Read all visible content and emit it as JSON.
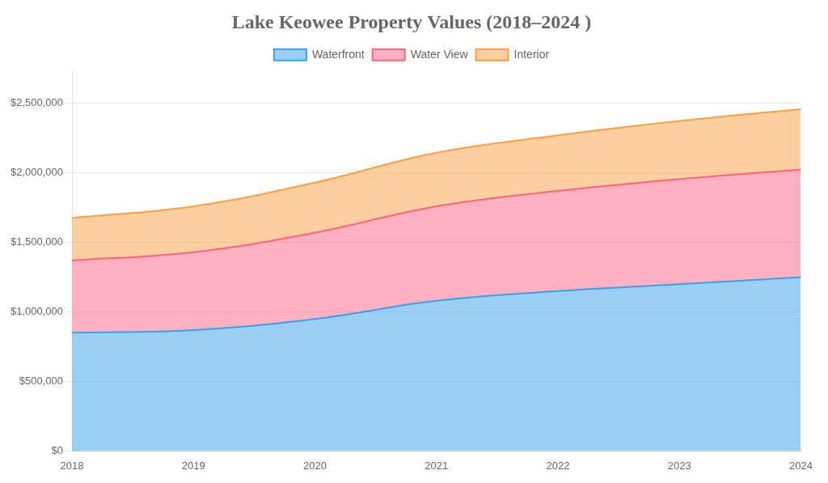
{
  "chart_data": {
    "type": "area",
    "title": "Lake Keowee Property Values (2018–2024 )",
    "x": [
      2018,
      2019,
      2020,
      2021,
      2022,
      2023,
      2024
    ],
    "series": [
      {
        "name": "Waterfront",
        "values": [
          850000,
          870000,
          950000,
          1080000,
          1150000,
          1200000,
          1250000
        ]
      },
      {
        "name": "Water View",
        "values": [
          520000,
          560000,
          620000,
          680000,
          720000,
          755000,
          775000
        ]
      },
      {
        "name": "Interior",
        "values": [
          305000,
          330000,
          360000,
          385000,
          400000,
          418000,
          435000
        ]
      }
    ],
    "stacked": true,
    "xlim": [
      2018,
      2024
    ],
    "xticks": [
      2018,
      2019,
      2020,
      2021,
      2022,
      2023,
      2024
    ],
    "ylim": [
      0,
      2750000
    ],
    "yticks": [
      {
        "value": 0,
        "label": "$0"
      },
      {
        "value": 500000,
        "label": "$500,000"
      },
      {
        "value": 1000000,
        "label": "$1,000,000"
      },
      {
        "value": 1500000,
        "label": "$1,500,000"
      },
      {
        "value": 2000000,
        "label": "$2,000,000"
      },
      {
        "value": 2500000,
        "label": "$2,500,000"
      }
    ],
    "grid": "y",
    "legend": "top"
  }
}
